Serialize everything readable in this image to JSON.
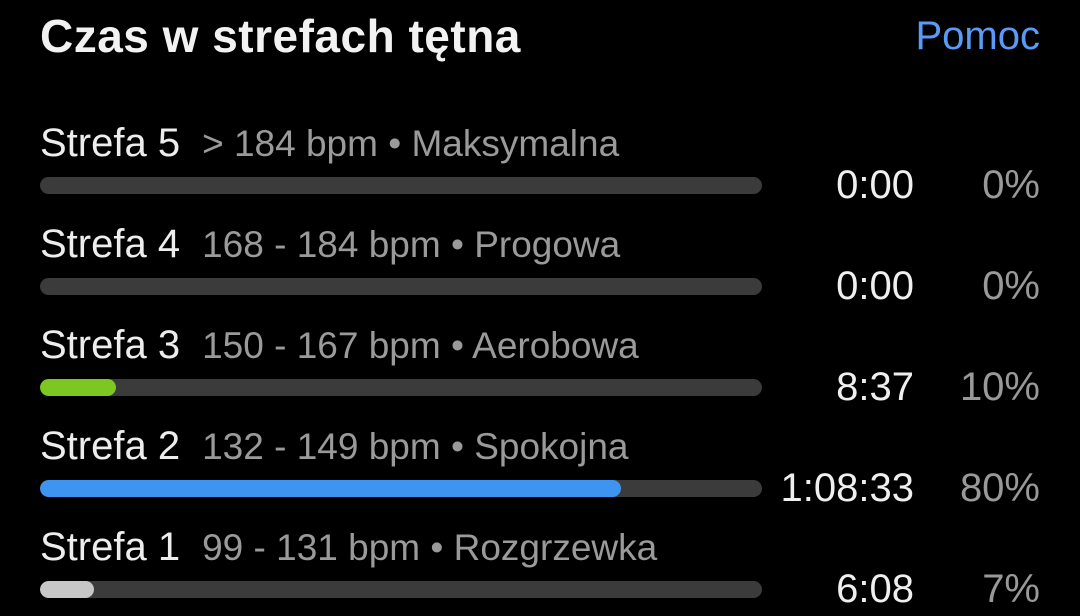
{
  "header": {
    "title": "Czas w strefach tętna",
    "help_label": "Pomoc"
  },
  "colors": {
    "background": "#000000",
    "accent_link": "#5A9BF7",
    "bar_track": "#3B3B3B",
    "zone3_fill": "#7CC720",
    "zone2_fill": "#3D94F1",
    "zone1_fill": "#C7C7C7"
  },
  "chart_data": {
    "type": "bar",
    "title": "Czas w strefach tętna",
    "categories": [
      "Strefa 5",
      "Strefa 4",
      "Strefa 3",
      "Strefa 2",
      "Strefa 1"
    ],
    "values_percent": [
      0,
      0,
      10,
      80,
      7
    ],
    "values_time": [
      "0:00",
      "0:00",
      "8:37",
      "1:08:33",
      "6:08"
    ],
    "xlim": [
      0,
      100
    ],
    "orientation": "horizontal"
  },
  "zones": [
    {
      "name": "Strefa 5",
      "range": "> 184 bpm • Maksymalna",
      "time": "0:00",
      "percent": "0%",
      "bar_fill_percent": 0,
      "bar_fill_color": "#3B3B3B"
    },
    {
      "name": "Strefa 4",
      "range": "168 - 184 bpm • Progowa",
      "time": "0:00",
      "percent": "0%",
      "bar_fill_percent": 0,
      "bar_fill_color": "#3B3B3B"
    },
    {
      "name": "Strefa 3",
      "range": "150 - 167 bpm • Aerobowa",
      "time": "8:37",
      "percent": "10%",
      "bar_fill_percent": 10.5,
      "bar_fill_color": "#7CC720"
    },
    {
      "name": "Strefa 2",
      "range": "132 - 149 bpm • Spokojna",
      "time": "1:08:33",
      "percent": "80%",
      "bar_fill_percent": 80.5,
      "bar_fill_color": "#3D94F1"
    },
    {
      "name": "Strefa 1",
      "range": "99 - 131 bpm • Rozgrzewka",
      "time": "6:08",
      "percent": "7%",
      "bar_fill_percent": 7.5,
      "bar_fill_color": "#C7C7C7"
    }
  ]
}
